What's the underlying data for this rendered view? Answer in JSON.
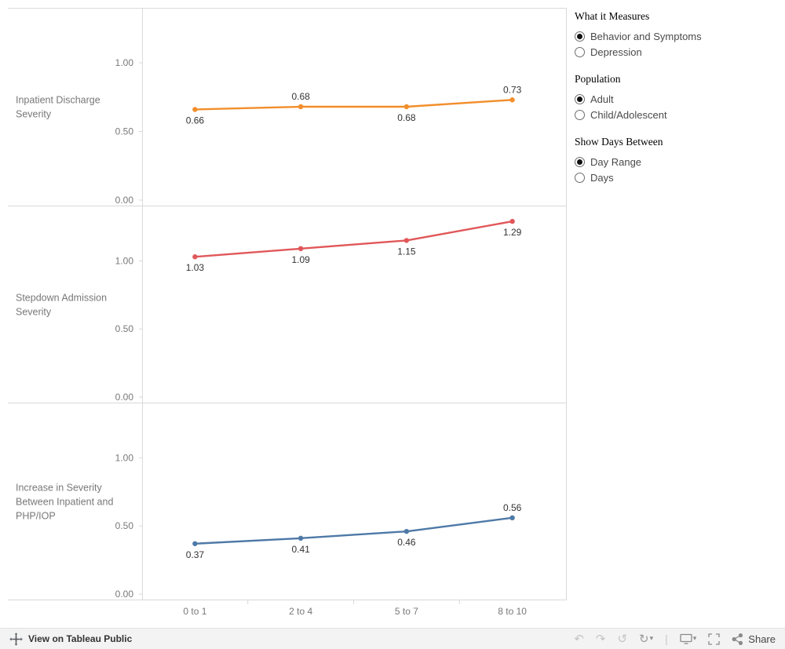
{
  "chart_data": {
    "type": "line",
    "categories": [
      "0 to 1",
      "2 to 4",
      "5 to 7",
      "8 to 10"
    ],
    "ylim": [
      0,
      1.4
    ],
    "yticks": [
      "0.00",
      "0.50",
      "1.00"
    ],
    "grid": false,
    "legend": "none",
    "panels": [
      {
        "label_lines": [
          "Inpatient Discharge",
          "Severity"
        ],
        "color": "#f28e2b",
        "values": [
          0.66,
          0.68,
          0.68,
          0.73
        ],
        "labels": [
          "0.66",
          "0.68",
          "0.68",
          "0.73"
        ],
        "label_side": [
          "below",
          "above",
          "below",
          "above"
        ]
      },
      {
        "label_lines": [
          "Stepdown Admission",
          "Severity"
        ],
        "color": "#e15759",
        "values": [
          1.03,
          1.09,
          1.15,
          1.29
        ],
        "labels": [
          "1.03",
          "1.09",
          "1.15",
          "1.29"
        ],
        "label_side": [
          "below",
          "below",
          "below",
          "below"
        ]
      },
      {
        "label_lines": [
          "Increase in Severity",
          "Between Inpatient and",
          "PHP/IOP"
        ],
        "color": "#4e79a7",
        "values": [
          0.37,
          0.41,
          0.46,
          0.56
        ],
        "labels": [
          "0.37",
          "0.41",
          "0.46",
          "0.56"
        ],
        "label_side": [
          "below",
          "below",
          "below",
          "above"
        ]
      }
    ]
  },
  "controls": [
    {
      "title": "What it Measures",
      "options": [
        {
          "label": "Behavior and Symptoms",
          "selected": true
        },
        {
          "label": "Depression",
          "selected": false
        }
      ]
    },
    {
      "title": "Population",
      "options": [
        {
          "label": "Adult",
          "selected": true
        },
        {
          "label": "Child/Adolescent",
          "selected": false
        }
      ]
    },
    {
      "title": "Show Days Between",
      "options": [
        {
          "label": "Day Range",
          "selected": true
        },
        {
          "label": "Days",
          "selected": false
        }
      ]
    }
  ],
  "toolbar": {
    "view_label": "View on Tableau Public",
    "share_label": "Share",
    "icons": {
      "undo": "↶",
      "redo": "↷",
      "revert": "↺",
      "refresh": "↻",
      "caret": "▾"
    }
  },
  "colors": {
    "axis_text": "#787878",
    "value_label": "#333333",
    "border": "#d9d9d9"
  }
}
